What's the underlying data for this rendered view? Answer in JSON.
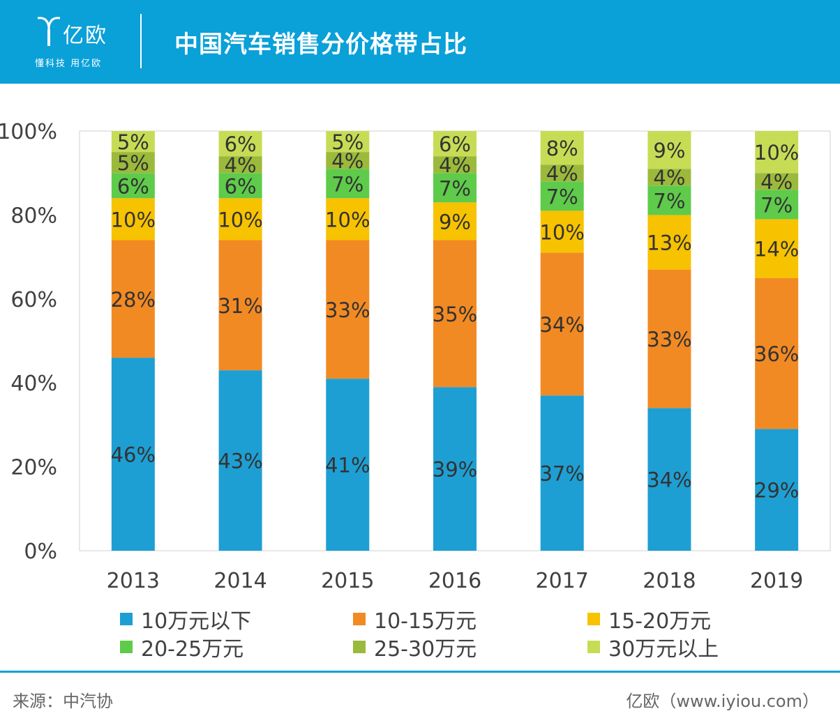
{
  "header": {
    "logo_name": "亿欧",
    "logo_slogan": "懂科技 用亿欧",
    "title": "中国汽车销售分价格带占比"
  },
  "footer": {
    "source": "来源：中汽协",
    "site": "亿欧（www.iyiou.com）"
  },
  "colors": {
    "header_bg": "#0aa0d8",
    "series": [
      "#1e9fd3",
      "#f28a23",
      "#f7c200",
      "#5ecb4a",
      "#9bba3b",
      "#c7dc55"
    ]
  },
  "chart_data": {
    "type": "bar",
    "stacked": true,
    "categories": [
      "2013",
      "2014",
      "2015",
      "2016",
      "2017",
      "2018",
      "2019"
    ],
    "series": [
      {
        "name": "10万元以下",
        "values": [
          46,
          43,
          41,
          39,
          37,
          34,
          29
        ],
        "labels": [
          "46%",
          "43%",
          "41%",
          "39%",
          "37%",
          "34%",
          "29%"
        ]
      },
      {
        "name": "10-15万元",
        "values": [
          28,
          31,
          33,
          35,
          34,
          33,
          36
        ],
        "labels": [
          "28%",
          "31%",
          "33%",
          "35%",
          "34%",
          "33%",
          "36%"
        ]
      },
      {
        "name": "15-20万元",
        "values": [
          10,
          10,
          10,
          9,
          10,
          13,
          14
        ],
        "labels": [
          "10%",
          "10%",
          "10%",
          "9%",
          "10%",
          "13%",
          "14%"
        ]
      },
      {
        "name": "20-25万元",
        "values": [
          6,
          6,
          7,
          7,
          7,
          7,
          7
        ],
        "labels": [
          "6%",
          "6%",
          "7%",
          "7%",
          "7%",
          "7%",
          "7%"
        ]
      },
      {
        "name": "25-30万元",
        "values": [
          5,
          4,
          4,
          4,
          4,
          4,
          4
        ],
        "labels": [
          "5%",
          "4%",
          "4%",
          "4%",
          "4%",
          "4%",
          "4%"
        ]
      },
      {
        "name": "30万元以上",
        "values": [
          5,
          6,
          5,
          6,
          8,
          9,
          10
        ],
        "labels": [
          "5%",
          "6%",
          "5%",
          "6%",
          "8%",
          "9%",
          "10%"
        ]
      }
    ],
    "y_ticks": [
      "0%",
      "20%",
      "40%",
      "60%",
      "80%",
      "100%"
    ],
    "ylim": [
      0,
      100
    ],
    "grid": false,
    "legend_position": "bottom"
  }
}
